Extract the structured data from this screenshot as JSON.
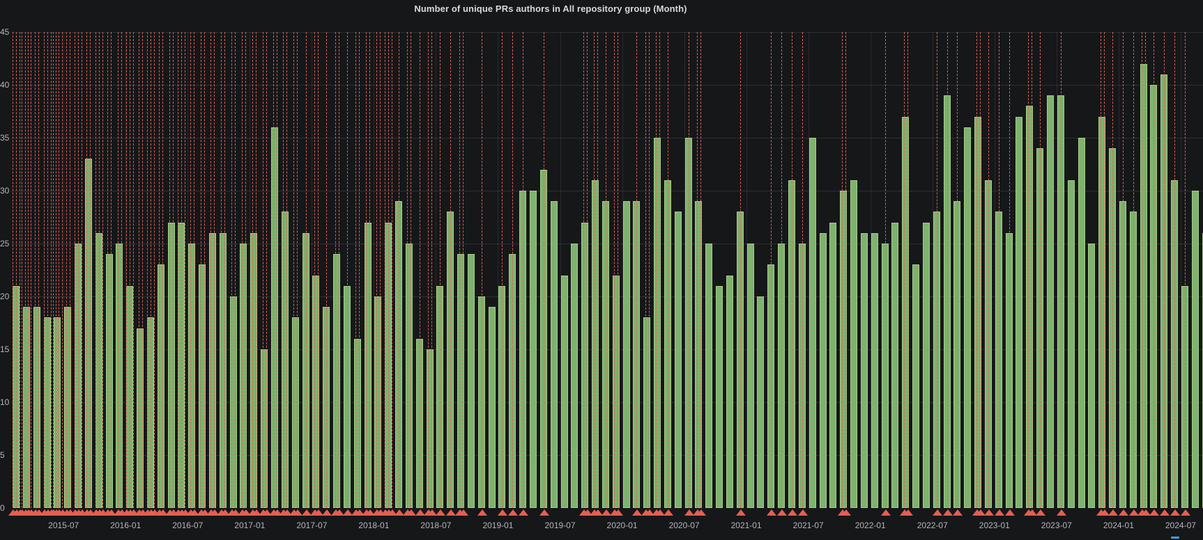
{
  "title": "Number of unique PRs authors in All repository group (Month)",
  "colors": {
    "background": "#161719",
    "bar_fill": "#7eb26d",
    "bar_border": "#a6cd8a",
    "annotation_red": "#e8635a",
    "grid": "#3a3c42",
    "axis_text": "#b3b6bc",
    "title_text": "#d8d9da",
    "accent_blue": "#33a2e5"
  },
  "chart_data": {
    "type": "bar",
    "title": "Number of unique PRs authors in All repository group (Month)",
    "xlabel": "",
    "ylabel": "",
    "ylim": [
      0,
      45
    ],
    "yticks": [
      0,
      5,
      10,
      15,
      20,
      25,
      30,
      35,
      40,
      45
    ],
    "grid": true,
    "legend_position": "none",
    "categories": [
      "2015-02",
      "2015-03",
      "2015-04",
      "2015-05",
      "2015-06",
      "2015-07",
      "2015-08",
      "2015-09",
      "2015-10",
      "2015-11",
      "2015-12",
      "2016-01",
      "2016-02",
      "2016-03",
      "2016-04",
      "2016-05",
      "2016-06",
      "2016-07",
      "2016-08",
      "2016-09",
      "2016-10",
      "2016-11",
      "2016-12",
      "2017-01",
      "2017-02",
      "2017-03",
      "2017-04",
      "2017-05",
      "2017-06",
      "2017-07",
      "2017-08",
      "2017-09",
      "2017-10",
      "2017-11",
      "2017-12",
      "2018-01",
      "2018-02",
      "2018-03",
      "2018-04",
      "2018-05",
      "2018-06",
      "2018-07",
      "2018-08",
      "2018-09",
      "2018-10",
      "2018-11",
      "2018-12",
      "2019-01",
      "2019-02",
      "2019-03",
      "2019-04",
      "2019-05",
      "2019-06",
      "2019-07",
      "2019-08",
      "2019-09",
      "2019-10",
      "2019-11",
      "2019-12",
      "2020-01",
      "2020-02",
      "2020-03",
      "2020-04",
      "2020-05",
      "2020-06",
      "2020-07",
      "2020-08",
      "2020-09",
      "2020-10",
      "2020-11",
      "2020-12",
      "2021-01",
      "2021-02",
      "2021-03",
      "2021-04",
      "2021-05",
      "2021-06",
      "2021-07",
      "2021-08",
      "2021-09",
      "2021-10",
      "2021-11",
      "2021-12",
      "2022-01",
      "2022-02",
      "2022-03",
      "2022-04",
      "2022-05",
      "2022-06",
      "2022-07",
      "2022-08",
      "2022-09",
      "2022-10",
      "2022-11",
      "2022-12",
      "2023-01",
      "2023-02",
      "2023-03",
      "2023-04",
      "2023-05",
      "2023-06",
      "2023-07",
      "2023-08",
      "2023-09",
      "2023-10",
      "2023-11",
      "2023-12",
      "2024-01",
      "2024-02",
      "2024-03",
      "2024-04",
      "2024-05",
      "2024-06",
      "2024-07",
      "2024-08",
      "2024-09"
    ],
    "values": [
      21,
      19,
      19,
      18,
      18,
      19,
      25,
      33,
      26,
      24,
      25,
      21,
      17,
      18,
      23,
      27,
      27,
      25,
      23,
      26,
      26,
      20,
      25,
      26,
      15,
      36,
      28,
      18,
      26,
      22,
      19,
      24,
      21,
      16,
      27,
      20,
      27,
      29,
      25,
      16,
      15,
      21,
      28,
      24,
      24,
      20,
      19,
      21,
      24,
      30,
      30,
      32,
      29,
      22,
      25,
      27,
      31,
      29,
      22,
      29,
      29,
      18,
      35,
      31,
      28,
      35,
      29,
      25,
      21,
      22,
      28,
      25,
      20,
      23,
      25,
      31,
      25,
      35,
      26,
      27,
      30,
      31,
      26,
      26,
      25,
      27,
      37,
      23,
      27,
      28,
      39,
      29,
      36,
      37,
      31,
      28,
      26,
      37,
      38,
      34,
      39,
      39,
      31,
      35,
      25,
      37,
      34,
      29,
      28,
      42,
      40,
      41,
      31,
      21,
      30,
      26
    ],
    "xticks": [
      {
        "label": "2015-07",
        "index": 5
      },
      {
        "label": "2016-01",
        "index": 11
      },
      {
        "label": "2016-07",
        "index": 17
      },
      {
        "label": "2017-01",
        "index": 23
      },
      {
        "label": "2017-07",
        "index": 29
      },
      {
        "label": "2018-01",
        "index": 35
      },
      {
        "label": "2018-07",
        "index": 41
      },
      {
        "label": "2019-01",
        "index": 47
      },
      {
        "label": "2019-07",
        "index": 53
      },
      {
        "label": "2020-01",
        "index": 59
      },
      {
        "label": "2020-07",
        "index": 65
      },
      {
        "label": "2021-01",
        "index": 71
      },
      {
        "label": "2021-07",
        "index": 77
      },
      {
        "label": "2022-01",
        "index": 83
      },
      {
        "label": "2022-07",
        "index": 89
      },
      {
        "label": "2023-01",
        "index": 95
      },
      {
        "label": "2023-07",
        "index": 101
      },
      {
        "label": "2024-01",
        "index": 107
      },
      {
        "label": "2024-07",
        "index": 113
      }
    ],
    "annotations": [
      {
        "index": 0,
        "count": 3
      },
      {
        "index": 1,
        "count": 4
      },
      {
        "index": 2,
        "count": 2
      },
      {
        "index": 3,
        "count": 3
      },
      {
        "index": 4,
        "count": 4
      },
      {
        "index": 5,
        "count": 2
      },
      {
        "index": 6,
        "count": 3
      },
      {
        "index": 7,
        "count": 2
      },
      {
        "index": 8,
        "count": 3
      },
      {
        "index": 9,
        "count": 2
      },
      {
        "index": 10,
        "count": 2
      },
      {
        "index": 11,
        "count": 3
      },
      {
        "index": 12,
        "count": 2
      },
      {
        "index": 13,
        "count": 3
      },
      {
        "index": 14,
        "count": 2
      },
      {
        "index": 15,
        "count": 2
      },
      {
        "index": 16,
        "count": 3
      },
      {
        "index": 17,
        "count": 2
      },
      {
        "index": 18,
        "count": 2
      },
      {
        "index": 19,
        "count": 2
      },
      {
        "index": 20,
        "count": 2
      },
      {
        "index": 21,
        "count": 2
      },
      {
        "index": 22,
        "count": 2
      },
      {
        "index": 23,
        "count": 2
      },
      {
        "index": 24,
        "count": 2
      },
      {
        "index": 25,
        "count": 2
      },
      {
        "index": 26,
        "count": 2
      },
      {
        "index": 27,
        "count": 2
      },
      {
        "index": 28,
        "count": 1
      },
      {
        "index": 29,
        "count": 2
      },
      {
        "index": 30,
        "count": 1
      },
      {
        "index": 31,
        "count": 2
      },
      {
        "index": 32,
        "count": 1
      },
      {
        "index": 33,
        "count": 2
      },
      {
        "index": 34,
        "count": 2
      },
      {
        "index": 35,
        "count": 2
      },
      {
        "index": 36,
        "count": 3
      },
      {
        "index": 37,
        "count": 1
      },
      {
        "index": 38,
        "count": 2
      },
      {
        "index": 39,
        "count": 1
      },
      {
        "index": 40,
        "count": 2
      },
      {
        "index": 41,
        "count": 1
      },
      {
        "index": 42,
        "count": 1
      },
      {
        "index": 43,
        "count": 2
      },
      {
        "index": 45,
        "count": 1
      },
      {
        "index": 47,
        "count": 1
      },
      {
        "index": 48,
        "count": 1
      },
      {
        "index": 49,
        "count": 1
      },
      {
        "index": 51,
        "count": 1
      },
      {
        "index": 55,
        "count": 2
      },
      {
        "index": 56,
        "count": 2
      },
      {
        "index": 57,
        "count": 1
      },
      {
        "index": 58,
        "count": 2
      },
      {
        "index": 60,
        "count": 1
      },
      {
        "index": 61,
        "count": 2
      },
      {
        "index": 62,
        "count": 2
      },
      {
        "index": 63,
        "count": 1
      },
      {
        "index": 65,
        "count": 1
      },
      {
        "index": 66,
        "count": 2
      },
      {
        "index": 70,
        "count": 1
      },
      {
        "index": 73,
        "count": 1
      },
      {
        "index": 74,
        "count": 1
      },
      {
        "index": 75,
        "count": 1
      },
      {
        "index": 76,
        "count": 1
      },
      {
        "index": 80,
        "count": 2
      },
      {
        "index": 84,
        "count": 1
      },
      {
        "index": 86,
        "count": 2
      },
      {
        "index": 89,
        "count": 1
      },
      {
        "index": 90,
        "count": 1
      },
      {
        "index": 91,
        "count": 1
      },
      {
        "index": 93,
        "count": 2
      },
      {
        "index": 94,
        "count": 1
      },
      {
        "index": 95,
        "count": 1
      },
      {
        "index": 96,
        "count": 1
      },
      {
        "index": 98,
        "count": 2
      },
      {
        "index": 99,
        "count": 1
      },
      {
        "index": 101,
        "count": 1
      },
      {
        "index": 105,
        "count": 2
      },
      {
        "index": 106,
        "count": 1
      },
      {
        "index": 107,
        "count": 1
      },
      {
        "index": 108,
        "count": 1
      },
      {
        "index": 109,
        "count": 2
      },
      {
        "index": 110,
        "count": 1
      },
      {
        "index": 111,
        "count": 1
      },
      {
        "index": 112,
        "count": 1
      },
      {
        "index": 113,
        "count": 1
      }
    ]
  }
}
